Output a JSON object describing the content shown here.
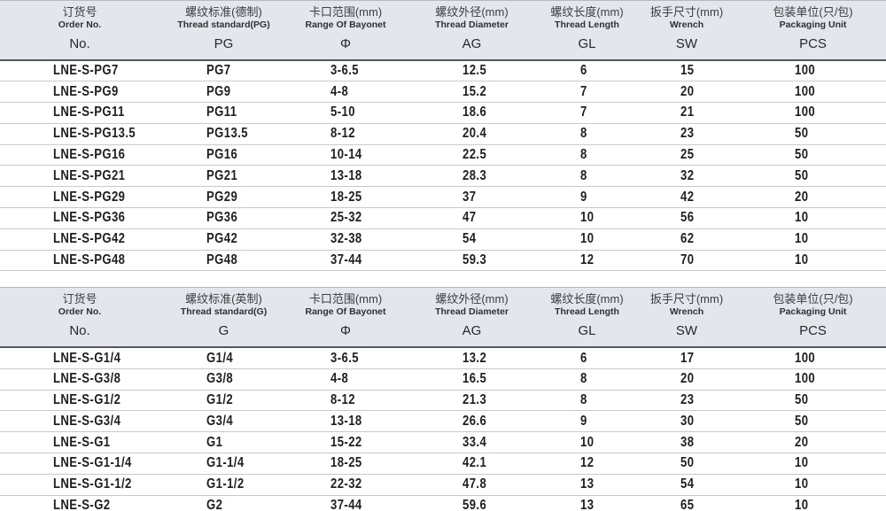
{
  "page": {
    "background": "#ffffff",
    "header_bg": "#e3e7ec",
    "header_border_dark": "#55585d",
    "row_line": "#c6c9cd",
    "text_color": "#1d1f22"
  },
  "tables": [
    {
      "name": "pg-thread-spec-table",
      "columns": [
        {
          "zh": "订货号",
          "en": "Order No.",
          "sym": "No."
        },
        {
          "zh": "螺纹标准(德制)",
          "en": "Thread standard(PG)",
          "sym": "PG"
        },
        {
          "zh": "卡口范围(mm)",
          "en": "Range Of Bayonet",
          "sym": "Φ"
        },
        {
          "zh": "螺纹外径(mm)",
          "en": "Thread Diameter",
          "sym": "AG"
        },
        {
          "zh": "螺纹长度(mm)",
          "en": "Thread Length",
          "sym": "GL"
        },
        {
          "zh": "扳手尺寸(mm)",
          "en": "Wrench",
          "sym": "SW"
        },
        {
          "zh": "包装单位(只/包)",
          "en": "Packaging Unit",
          "sym": "PCS"
        }
      ],
      "rows": [
        [
          "LNE-S-PG7",
          "PG7",
          "3-6.5",
          "12.5",
          "6",
          "15",
          "100"
        ],
        [
          "LNE-S-PG9",
          "PG9",
          "4-8",
          "15.2",
          "7",
          "20",
          "100"
        ],
        [
          "LNE-S-PG11",
          "PG11",
          "5-10",
          "18.6",
          "7",
          "21",
          "100"
        ],
        [
          "LNE-S-PG13.5",
          "PG13.5",
          "8-12",
          "20.4",
          "8",
          "23",
          "50"
        ],
        [
          "LNE-S-PG16",
          "PG16",
          "10-14",
          "22.5",
          "8",
          "25",
          "50"
        ],
        [
          "LNE-S-PG21",
          "PG21",
          "13-18",
          "28.3",
          "8",
          "32",
          "50"
        ],
        [
          "LNE-S-PG29",
          "PG29",
          "18-25",
          "37",
          "9",
          "42",
          "20"
        ],
        [
          "LNE-S-PG36",
          "PG36",
          "25-32",
          "47",
          "10",
          "56",
          "10"
        ],
        [
          "LNE-S-PG42",
          "PG42",
          "32-38",
          "54",
          "10",
          "62",
          "10"
        ],
        [
          "LNE-S-PG48",
          "PG48",
          "37-44",
          "59.3",
          "12",
          "70",
          "10"
        ]
      ]
    },
    {
      "name": "g-thread-spec-table",
      "columns": [
        {
          "zh": "订货号",
          "en": "Order No.",
          "sym": "No."
        },
        {
          "zh": "螺纹标准(英制)",
          "en": "Thread standard(G)",
          "sym": "G"
        },
        {
          "zh": "卡口范围(mm)",
          "en": "Range Of Bayonet",
          "sym": "Φ"
        },
        {
          "zh": "螺纹外径(mm)",
          "en": "Thread Diameter",
          "sym": "AG"
        },
        {
          "zh": "螺纹长度(mm)",
          "en": "Thread Length",
          "sym": "GL"
        },
        {
          "zh": "扳手尺寸(mm)",
          "en": "Wrench",
          "sym": "SW"
        },
        {
          "zh": "包装单位(只/包)",
          "en": "Packaging Unit",
          "sym": "PCS"
        }
      ],
      "rows": [
        [
          "LNE-S-G1/4",
          "G1/4",
          "3-6.5",
          "13.2",
          "6",
          "17",
          "100"
        ],
        [
          "LNE-S-G3/8",
          "G3/8",
          "4-8",
          "16.5",
          "8",
          "20",
          "100"
        ],
        [
          "LNE-S-G1/2",
          "G1/2",
          "8-12",
          "21.3",
          "8",
          "23",
          "50"
        ],
        [
          "LNE-S-G3/4",
          "G3/4",
          "13-18",
          "26.6",
          "9",
          "30",
          "50"
        ],
        [
          "LNE-S-G1",
          "G1",
          "15-22",
          "33.4",
          "10",
          "38",
          "20"
        ],
        [
          "LNE-S-G1-1/4",
          "G1-1/4",
          "18-25",
          "42.1",
          "12",
          "50",
          "10"
        ],
        [
          "LNE-S-G1-1/2",
          "G1-1/2",
          "22-32",
          "47.8",
          "13",
          "54",
          "10"
        ],
        [
          "LNE-S-G2",
          "G2",
          "37-44",
          "59.6",
          "13",
          "65",
          "10"
        ]
      ]
    }
  ]
}
